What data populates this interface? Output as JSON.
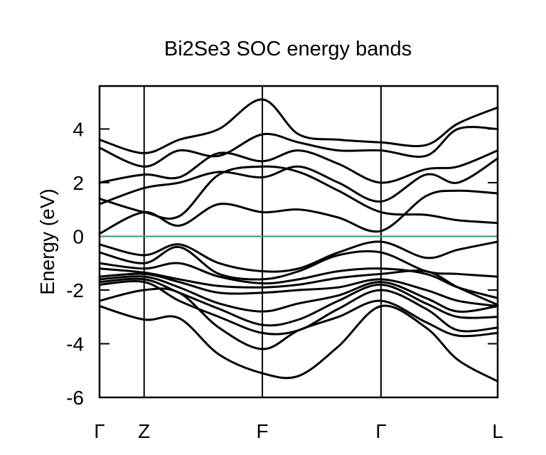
{
  "chart_data": {
    "type": "line",
    "title": "Bi2Se3 SOC energy bands",
    "xlabel": "",
    "ylabel": "Energy (eV)",
    "ylim": [
      -6,
      5.6
    ],
    "yticks": [
      -6,
      -4,
      -2,
      0,
      2,
      4
    ],
    "ytick_labels": [
      "-6",
      "-4",
      "-2",
      "0",
      "2",
      "4"
    ],
    "xticks": [
      0,
      0.112,
      0.409,
      0.707,
      1.0
    ],
    "xtick_labels": [
      "Γ",
      "Z",
      "F",
      "Γ",
      "L"
    ],
    "grid": false,
    "legend": null,
    "fermi_level": {
      "energy": 0,
      "color": "#2a9d7f"
    },
    "high_symmetry_lines": [
      "Z",
      "F",
      "Γ"
    ],
    "band_color": "#000000",
    "series": [
      {
        "name": "band-1",
        "points": [
          [
            0,
            -2.6
          ],
          [
            0.112,
            -3.1
          ],
          [
            0.2,
            -3.05
          ],
          [
            0.3,
            -4.4
          ],
          [
            0.409,
            -5.1
          ],
          [
            0.5,
            -5.2
          ],
          [
            0.6,
            -4.1
          ],
          [
            0.707,
            -2.6
          ],
          [
            0.82,
            -3.4
          ],
          [
            0.9,
            -4.6
          ],
          [
            1.0,
            -5.4
          ]
        ]
      },
      {
        "name": "band-2",
        "points": [
          [
            0,
            -2.4
          ],
          [
            0.112,
            -2.0
          ],
          [
            0.2,
            -2.1
          ],
          [
            0.3,
            -3.4
          ],
          [
            0.409,
            -4.2
          ],
          [
            0.5,
            -3.5
          ],
          [
            0.6,
            -3.0
          ],
          [
            0.707,
            -2.4
          ],
          [
            0.82,
            -3.2
          ],
          [
            0.9,
            -3.7
          ],
          [
            1.0,
            -3.6
          ]
        ]
      },
      {
        "name": "band-3",
        "points": [
          [
            0,
            -1.8
          ],
          [
            0.112,
            -1.7
          ],
          [
            0.2,
            -2.4
          ],
          [
            0.3,
            -3.0
          ],
          [
            0.409,
            -3.6
          ],
          [
            0.5,
            -3.5
          ],
          [
            0.6,
            -2.7
          ],
          [
            0.707,
            -2.0
          ],
          [
            0.82,
            -2.7
          ],
          [
            0.9,
            -3.5
          ],
          [
            1.0,
            -3.4
          ]
        ]
      },
      {
        "name": "band-4",
        "points": [
          [
            0,
            -1.7
          ],
          [
            0.112,
            -1.6
          ],
          [
            0.2,
            -2.1
          ],
          [
            0.3,
            -2.7
          ],
          [
            0.409,
            -3.3
          ],
          [
            0.5,
            -3.1
          ],
          [
            0.6,
            -2.4
          ],
          [
            0.707,
            -1.8
          ],
          [
            0.82,
            -2.5
          ],
          [
            0.9,
            -3.0
          ],
          [
            1.0,
            -3.0
          ]
        ]
      },
      {
        "name": "band-5",
        "points": [
          [
            0,
            -1.6
          ],
          [
            0.112,
            -1.5
          ],
          [
            0.2,
            -1.9
          ],
          [
            0.3,
            -2.5
          ],
          [
            0.409,
            -2.8
          ],
          [
            0.5,
            -2.5
          ],
          [
            0.6,
            -2.2
          ],
          [
            0.707,
            -1.7
          ],
          [
            0.82,
            -2.3
          ],
          [
            0.9,
            -2.8
          ],
          [
            1.0,
            -2.6
          ]
        ]
      },
      {
        "name": "band-6",
        "points": [
          [
            0,
            -1.5
          ],
          [
            0.112,
            -1.4
          ],
          [
            0.2,
            -1.7
          ],
          [
            0.3,
            -2.1
          ],
          [
            0.409,
            -2.1
          ],
          [
            0.5,
            -2.0
          ],
          [
            0.6,
            -1.9
          ],
          [
            0.707,
            -1.6
          ],
          [
            0.82,
            -2.0
          ],
          [
            0.9,
            -2.4
          ],
          [
            1.0,
            -2.6
          ]
        ]
      },
      {
        "name": "band-7",
        "points": [
          [
            0,
            -1.2
          ],
          [
            0.112,
            -1.35
          ],
          [
            0.2,
            -1.6
          ],
          [
            0.3,
            -1.85
          ],
          [
            0.409,
            -1.9
          ],
          [
            0.5,
            -1.8
          ],
          [
            0.6,
            -1.55
          ],
          [
            0.707,
            -1.4
          ],
          [
            0.82,
            -1.3
          ],
          [
            0.9,
            -1.9
          ],
          [
            1.0,
            -2.55
          ]
        ]
      },
      {
        "name": "band-8",
        "points": [
          [
            0,
            -1.0
          ],
          [
            0.112,
            -1.2
          ],
          [
            0.2,
            -1.0
          ],
          [
            0.3,
            -1.5
          ],
          [
            0.409,
            -1.75
          ],
          [
            0.5,
            -1.6
          ],
          [
            0.6,
            -1.3
          ],
          [
            0.707,
            -1.2
          ],
          [
            0.82,
            -1.4
          ],
          [
            0.9,
            -1.9
          ],
          [
            1.0,
            -2.3
          ]
        ]
      },
      {
        "name": "band-9",
        "points": [
          [
            0,
            -0.6
          ],
          [
            0.112,
            -1.0
          ],
          [
            0.2,
            -0.4
          ],
          [
            0.3,
            -1.4
          ],
          [
            0.409,
            -1.6
          ],
          [
            0.5,
            -1.3
          ],
          [
            0.6,
            -0.7
          ],
          [
            0.707,
            -0.6
          ],
          [
            0.82,
            -1.3
          ],
          [
            0.9,
            -1.4
          ],
          [
            1.0,
            -1.5
          ]
        ]
      },
      {
        "name": "band-10",
        "points": [
          [
            0,
            -0.3
          ],
          [
            0.112,
            -0.7
          ],
          [
            0.2,
            -0.3
          ],
          [
            0.3,
            -1.0
          ],
          [
            0.409,
            -1.3
          ],
          [
            0.5,
            -1.2
          ],
          [
            0.6,
            -0.6
          ],
          [
            0.707,
            -0.2
          ],
          [
            0.82,
            -0.8
          ],
          [
            0.9,
            -0.5
          ],
          [
            1.0,
            -0.2
          ]
        ]
      },
      {
        "name": "band-11",
        "points": [
          [
            0,
            0.1
          ],
          [
            0.112,
            0.9
          ],
          [
            0.2,
            0.4
          ],
          [
            0.3,
            1.2
          ],
          [
            0.409,
            0.9
          ],
          [
            0.5,
            1.0
          ],
          [
            0.6,
            0.7
          ],
          [
            0.707,
            0.2
          ],
          [
            0.82,
            1.5
          ],
          [
            0.9,
            1.7
          ],
          [
            1.0,
            1.6
          ]
        ]
      },
      {
        "name": "band-12",
        "points": [
          [
            0,
            1.4
          ],
          [
            0.112,
            0.9
          ],
          [
            0.2,
            0.75
          ],
          [
            0.3,
            2.3
          ],
          [
            0.409,
            2.6
          ],
          [
            0.5,
            2.4
          ],
          [
            0.6,
            1.7
          ],
          [
            0.707,
            0.9
          ],
          [
            0.82,
            0.8
          ],
          [
            0.9,
            0.6
          ],
          [
            1.0,
            0.5
          ]
        ]
      },
      {
        "name": "band-13",
        "points": [
          [
            0,
            1.2
          ],
          [
            0.112,
            1.8
          ],
          [
            0.2,
            2.0
          ],
          [
            0.3,
            2.4
          ],
          [
            0.409,
            2.2
          ],
          [
            0.5,
            2.6
          ],
          [
            0.6,
            2.0
          ],
          [
            0.707,
            1.3
          ],
          [
            0.82,
            2.3
          ],
          [
            0.9,
            2.0
          ],
          [
            1.0,
            2.9
          ]
        ]
      },
      {
        "name": "band-14",
        "points": [
          [
            0,
            2.0
          ],
          [
            0.112,
            2.3
          ],
          [
            0.2,
            2.2
          ],
          [
            0.3,
            3.1
          ],
          [
            0.409,
            2.8
          ],
          [
            0.5,
            3.2
          ],
          [
            0.6,
            2.7
          ],
          [
            0.707,
            2.0
          ],
          [
            0.82,
            2.5
          ],
          [
            0.9,
            2.6
          ],
          [
            1.0,
            3.2
          ]
        ]
      },
      {
        "name": "band-15",
        "points": [
          [
            0,
            3.3
          ],
          [
            0.112,
            2.6
          ],
          [
            0.2,
            3.2
          ],
          [
            0.3,
            3.0
          ],
          [
            0.409,
            3.8
          ],
          [
            0.5,
            3.5
          ],
          [
            0.6,
            3.2
          ],
          [
            0.707,
            3.2
          ],
          [
            0.82,
            3.0
          ],
          [
            0.9,
            4.0
          ],
          [
            1.0,
            4.0
          ]
        ]
      },
      {
        "name": "band-16",
        "points": [
          [
            0,
            3.6
          ],
          [
            0.112,
            3.1
          ],
          [
            0.2,
            3.6
          ],
          [
            0.3,
            4.0
          ],
          [
            0.409,
            5.1
          ],
          [
            0.5,
            3.8
          ],
          [
            0.6,
            3.6
          ],
          [
            0.707,
            3.5
          ],
          [
            0.82,
            3.4
          ],
          [
            0.9,
            4.2
          ],
          [
            1.0,
            4.8
          ]
        ]
      }
    ]
  }
}
